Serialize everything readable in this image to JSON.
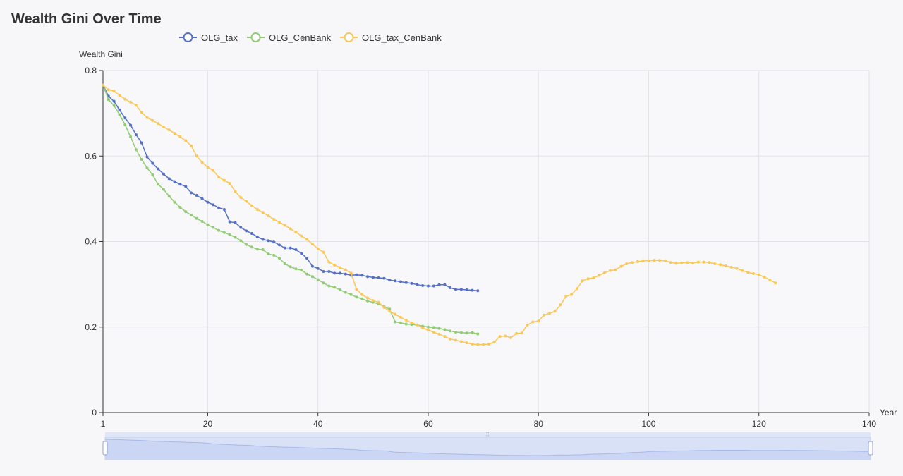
{
  "chart_data": {
    "type": "line",
    "title": "Wealth Gini Over Time",
    "xlabel": "Year",
    "ylabel": "Wealth Gini",
    "xlim": [
      1,
      140
    ],
    "ylim": [
      0,
      0.8
    ],
    "x_ticks": [
      1,
      20,
      40,
      60,
      80,
      100,
      120,
      140
    ],
    "y_ticks": [
      0,
      0.2,
      0.4,
      0.6,
      0.8
    ],
    "legend_position": "top-center",
    "grid": true,
    "data_zoom_slider": true,
    "series": [
      {
        "name": "OLG_tax",
        "color": "#5470c6",
        "x_start": 1,
        "values": [
          0.766,
          0.74,
          0.728,
          0.708,
          0.689,
          0.672,
          0.65,
          0.631,
          0.598,
          0.583,
          0.57,
          0.558,
          0.547,
          0.54,
          0.534,
          0.529,
          0.514,
          0.508,
          0.5,
          0.492,
          0.486,
          0.479,
          0.475,
          0.446,
          0.444,
          0.433,
          0.425,
          0.419,
          0.411,
          0.405,
          0.402,
          0.399,
          0.392,
          0.385,
          0.385,
          0.381,
          0.372,
          0.361,
          0.342,
          0.337,
          0.33,
          0.33,
          0.326,
          0.326,
          0.324,
          0.321,
          0.322,
          0.321,
          0.318,
          0.316,
          0.315,
          0.314,
          0.31,
          0.308,
          0.306,
          0.304,
          0.302,
          0.299,
          0.297,
          0.296,
          0.296,
          0.299,
          0.299,
          0.292,
          0.288,
          0.288,
          0.287,
          0.286,
          0.285
        ]
      },
      {
        "name": "OLG_CenBank",
        "color": "#91cc75",
        "x_start": 1,
        "values": [
          0.766,
          0.732,
          0.718,
          0.697,
          0.673,
          0.645,
          0.615,
          0.592,
          0.572,
          0.556,
          0.534,
          0.522,
          0.506,
          0.492,
          0.48,
          0.47,
          0.462,
          0.454,
          0.447,
          0.439,
          0.433,
          0.426,
          0.421,
          0.416,
          0.41,
          0.402,
          0.393,
          0.387,
          0.382,
          0.381,
          0.371,
          0.368,
          0.361,
          0.348,
          0.341,
          0.336,
          0.333,
          0.324,
          0.318,
          0.311,
          0.303,
          0.296,
          0.293,
          0.287,
          0.281,
          0.276,
          0.27,
          0.266,
          0.261,
          0.258,
          0.254,
          0.248,
          0.242,
          0.212,
          0.21,
          0.207,
          0.206,
          0.205,
          0.202,
          0.2,
          0.199,
          0.197,
          0.194,
          0.191,
          0.188,
          0.187,
          0.186,
          0.187,
          0.184
        ]
      },
      {
        "name": "OLG_tax_CenBank",
        "color": "#fac858",
        "x_start": 1,
        "values": [
          0.766,
          0.755,
          0.752,
          0.742,
          0.733,
          0.726,
          0.719,
          0.702,
          0.69,
          0.683,
          0.676,
          0.668,
          0.661,
          0.653,
          0.645,
          0.636,
          0.624,
          0.6,
          0.585,
          0.574,
          0.566,
          0.551,
          0.543,
          0.536,
          0.517,
          0.503,
          0.494,
          0.484,
          0.475,
          0.468,
          0.46,
          0.452,
          0.445,
          0.438,
          0.43,
          0.422,
          0.413,
          0.405,
          0.394,
          0.383,
          0.375,
          0.352,
          0.345,
          0.339,
          0.334,
          0.326,
          0.288,
          0.276,
          0.268,
          0.262,
          0.258,
          0.246,
          0.237,
          0.23,
          0.223,
          0.216,
          0.21,
          0.205,
          0.198,
          0.193,
          0.188,
          0.183,
          0.178,
          0.172,
          0.169,
          0.166,
          0.163,
          0.16,
          0.159,
          0.159,
          0.16,
          0.165,
          0.178,
          0.179,
          0.175,
          0.185,
          0.186,
          0.205,
          0.212,
          0.214,
          0.228,
          0.232,
          0.237,
          0.252,
          0.272,
          0.276,
          0.29,
          0.308,
          0.313,
          0.315,
          0.321,
          0.327,
          0.332,
          0.334,
          0.342,
          0.348,
          0.351,
          0.353,
          0.355,
          0.355,
          0.356,
          0.356,
          0.355,
          0.351,
          0.349,
          0.35,
          0.351,
          0.35,
          0.352,
          0.352,
          0.351,
          0.348,
          0.346,
          0.343,
          0.34,
          0.337,
          0.332,
          0.328,
          0.325,
          0.322,
          0.317,
          0.31,
          0.303
        ]
      }
    ]
  }
}
